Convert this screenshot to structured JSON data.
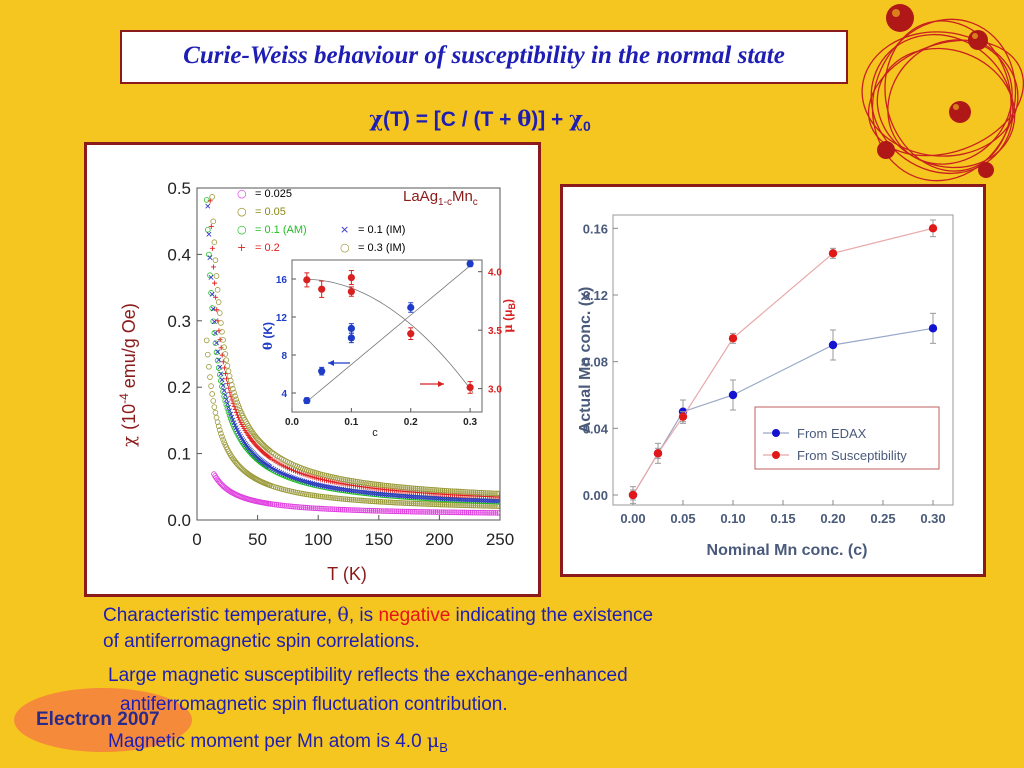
{
  "slide": {
    "title": "Curie-Weiss behaviour of susceptibility in the normal state",
    "formula": {
      "chi": "χ",
      "p1": "(T) = [C / (T + ",
      "theta": "θ",
      "p2": ")] + ",
      "chi0": "χ",
      "sub0": "0"
    },
    "text1a": "Characteristic temperature, ",
    "text1theta": "θ",
    "text1b": ", is ",
    "text1neg": "negative",
    "text1c": " indicating the existence",
    "text2": "of antiferromagnetic spin correlations.",
    "text3": "Large magnetic susceptibility reflects the exchange-enhanced",
    "text4": "antiferromagnetic spin fluctuation contribution.",
    "text5a": "Magnetic moment per Mn atom is 4.0 ",
    "text5mu": "μ",
    "text5sub": "B",
    "badge": "Electron 2007"
  },
  "colors": {
    "background": "#F5C61F",
    "title_text": "#1E1EB4",
    "frame": "#8B1A1A",
    "negative": "#E8131A"
  },
  "chart_data": [
    {
      "type": "scatter",
      "label_top_left": "LaAg",
      "label_sub1": "1-c",
      "label_mn": "Mn",
      "label_sub2": "c",
      "ylabel_chi": "χ",
      "ylabel_text": "(10",
      "ylabel_exp": "-4",
      "ylabel_units": " emu/g Oe)",
      "xlabel": "T    (K)",
      "xlim": [
        0,
        250
      ],
      "ylim": [
        0,
        0.5
      ],
      "xticks": [
        "0",
        "50",
        "100",
        "150",
        "200",
        "250"
      ],
      "yticks": [
        "0.0",
        "0.1",
        "0.2",
        "0.3",
        "0.4",
        "0.5"
      ],
      "legend": [
        {
          "marker": "○",
          "text": "= 0.025",
          "color": "#E040E0",
          "textcolor": "#000000"
        },
        {
          "marker": "○",
          "text": "=  0.05",
          "color": "#8A8A1A",
          "textcolor": "#8A8A1A"
        },
        {
          "marker": "○",
          "text": "= 0.1 (AM)",
          "color": "#20C020",
          "textcolor": "#20C020"
        },
        {
          "marker": "+",
          "text": "=  0.2",
          "color": "#E02020",
          "textcolor": "#E02020"
        },
        {
          "marker": "×",
          "text": "= 0.1 (IM)",
          "color": "#3030D0",
          "textcolor": "#000000"
        },
        {
          "marker": "○",
          "text": "= 0.3 (IM)",
          "color": "#9A9A3A",
          "textcolor": "#000000"
        }
      ],
      "series": [
        {
          "c": "0.025",
          "color": "#E040E0",
          "marker": "circle",
          "C": 1.2,
          "theta": -5,
          "chi0": 0.006,
          "tmin": 14
        },
        {
          "c": "0.05",
          "color": "#9A9A3A",
          "marker": "circle",
          "C": 2.6,
          "theta": -2,
          "chi0": 0.0105,
          "tmin": 8
        },
        {
          "c": "0.1 (AM)",
          "color": "#20C020",
          "marker": "circle",
          "C": 4.0,
          "theta": -0.5,
          "chi0": 0.0115,
          "tmin": 8
        },
        {
          "c": "0.1 (IM)",
          "color": "#3030D0",
          "marker": "x",
          "C": 4.1,
          "theta": 0,
          "chi0": 0.012,
          "tmin": 8
        },
        {
          "c": "0.2",
          "color": "#E02020",
          "marker": "plus",
          "C": 4.6,
          "theta": 1,
          "chi0": 0.016,
          "tmin": 10
        },
        {
          "c": "0.3 (IM)",
          "color": "#9A9A3A",
          "marker": "circle",
          "C": 4.9,
          "theta": 2,
          "chi0": 0.02,
          "tmin": 8
        }
      ]
    },
    {
      "type": "scatter",
      "role": "inset",
      "xlabel": "c",
      "ylabel_left_sym": "θ",
      "ylabel_left_unit": " (K)",
      "ylabel_right_sym": "μ",
      "ylabel_right_unit": " (μ",
      "ylabel_right_sub": "B",
      "xlim": [
        0,
        0.32
      ],
      "ylim_left": [
        2,
        18
      ],
      "ylim_right": [
        2.8,
        4.1
      ],
      "xticks": [
        "0.0",
        "0.1",
        "0.2",
        "0.3"
      ],
      "yticks_left": [
        "4",
        "8",
        "12",
        "16"
      ],
      "yticks_right": [
        "3.0",
        "3.5",
        "4.0"
      ],
      "series": [
        {
          "name": "θ",
          "axis": "left",
          "color": "#1E3CC8",
          "x": [
            0.025,
            0.05,
            0.1,
            0.1,
            0.2,
            0.3
          ],
          "y": [
            3.2,
            6.3,
            9.8,
            10.8,
            13.0,
            17.6
          ],
          "err": [
            0.3,
            0.4,
            0.5,
            0.5,
            0.5,
            0.3
          ]
        },
        {
          "name": "μ",
          "axis": "right",
          "color": "#D82020",
          "x": [
            0.025,
            0.05,
            0.1,
            0.1,
            0.2,
            0.3
          ],
          "y": [
            3.93,
            3.85,
            3.95,
            3.83,
            3.47,
            3.01
          ],
          "err": [
            0.06,
            0.07,
            0.06,
            0.04,
            0.05,
            0.05
          ]
        }
      ]
    },
    {
      "type": "line",
      "xlabel": "Nominal Mn conc. (c)",
      "ylabel": "Actual Mn conc.  (x)",
      "xlim": [
        -0.02,
        0.32
      ],
      "ylim": [
        -0.006,
        0.168
      ],
      "xticks": [
        "0.00",
        "0.05",
        "0.10",
        "0.15",
        "0.20",
        "0.25",
        "0.30"
      ],
      "yticks": [
        "0.00",
        "0.04",
        "0.08",
        "0.12",
        "0.16"
      ],
      "legend": [
        "From EDAX",
        "From Susceptibility"
      ],
      "series": [
        {
          "name": "From EDAX",
          "color": "#1414D0",
          "linecolor": "#9AA8C8",
          "x": [
            0,
            0.025,
            0.05,
            0.1,
            0.2,
            0.3
          ],
          "y": [
            0.0,
            0.025,
            0.05,
            0.06,
            0.09,
            0.1
          ],
          "err": [
            0.005,
            0.006,
            0.007,
            0.009,
            0.009,
            0.009
          ]
        },
        {
          "name": "From Susceptibility",
          "color": "#E01818",
          "linecolor": "#E8A8A8",
          "x": [
            0,
            0.025,
            0.05,
            0.1,
            0.2,
            0.3
          ],
          "y": [
            0.0,
            0.025,
            0.047,
            0.094,
            0.145,
            0.16
          ],
          "err": [
            0.003,
            0.003,
            0.003,
            0.003,
            0.003,
            0.005
          ]
        }
      ]
    }
  ]
}
